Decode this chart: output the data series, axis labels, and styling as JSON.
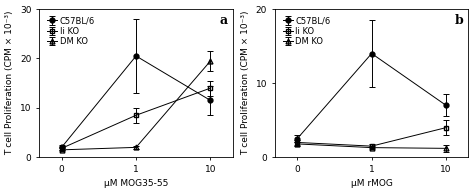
{
  "panel_a": {
    "title": "a",
    "xlabel": "μM MOG35-55",
    "ylim": [
      0,
      30
    ],
    "yticks": [
      0,
      10,
      20,
      30
    ],
    "xtick_labels": [
      "0",
      "1",
      "10"
    ],
    "series": {
      "C57BL/6": {
        "x": [
          0,
          1,
          2
        ],
        "y": [
          2.0,
          20.5,
          11.5
        ],
        "yerr": [
          0.5,
          7.5,
          3.0
        ],
        "marker": "o",
        "fillstyle": "full"
      },
      "Ii KO": {
        "x": [
          0,
          1,
          2
        ],
        "y": [
          1.8,
          8.5,
          14.0
        ],
        "yerr": [
          0.3,
          1.5,
          1.5
        ],
        "marker": "s",
        "fillstyle": "none"
      },
      "DM KO": {
        "x": [
          0,
          1,
          2
        ],
        "y": [
          1.5,
          2.0,
          19.5
        ],
        "yerr": [
          0.3,
          0.3,
          2.0
        ],
        "marker": "^",
        "fillstyle": "none"
      }
    }
  },
  "panel_b": {
    "title": "b",
    "xlabel": "μM rMOG",
    "ylim": [
      0,
      20
    ],
    "yticks": [
      0,
      10,
      20
    ],
    "xtick_labels": [
      "0",
      "1",
      "10"
    ],
    "series": {
      "C57BL/6": {
        "x": [
          0,
          1,
          2
        ],
        "y": [
          2.5,
          14.0,
          7.0
        ],
        "yerr": [
          0.5,
          4.5,
          1.5
        ],
        "marker": "o",
        "fillstyle": "full"
      },
      "Ii KO": {
        "x": [
          0,
          1,
          2
        ],
        "y": [
          2.0,
          1.5,
          4.0
        ],
        "yerr": [
          0.3,
          0.3,
          1.0
        ],
        "marker": "s",
        "fillstyle": "none"
      },
      "DM KO": {
        "x": [
          0,
          1,
          2
        ],
        "y": [
          1.8,
          1.3,
          1.2
        ],
        "yerr": [
          0.3,
          0.2,
          0.5
        ],
        "marker": "^",
        "fillstyle": "none"
      }
    }
  },
  "background_color": "#ffffff",
  "ylabel": "T cell Proliferation (CPM × 10⁻³)",
  "fontsize": 6.5,
  "title_fontsize": 9,
  "legend_fontsize": 6
}
